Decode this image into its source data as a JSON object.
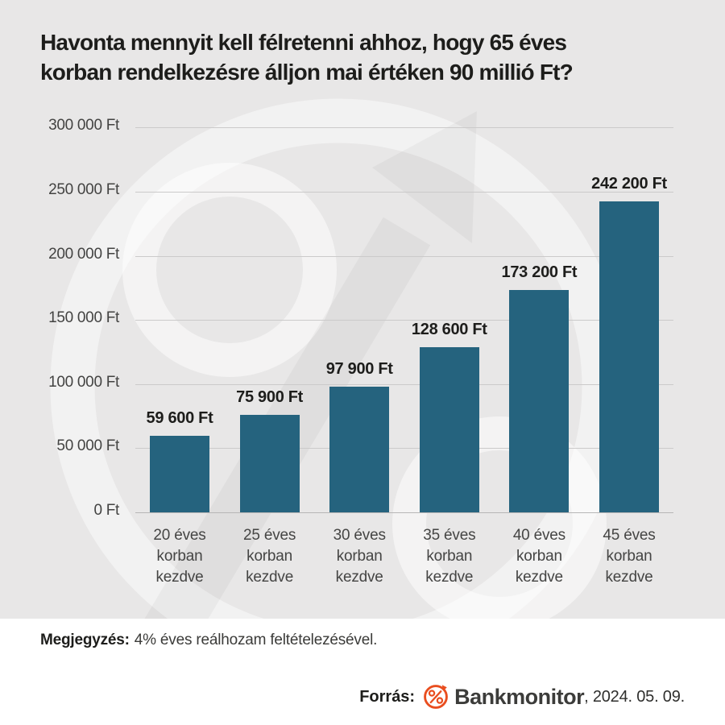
{
  "page": {
    "title_line1": "Havonta mennyit kell félretenni ahhoz, hogy 65 éves",
    "title_line2": "korban rendelkezésre álljon mai értéken 90 millió Ft?"
  },
  "chart_data": {
    "type": "bar",
    "title": "Havonta mennyit kell félretenni ahhoz, hogy 65 éves korban rendelkezésre álljon mai értéken 90 millió Ft?",
    "categories": [
      "20 éves korban kezdve",
      "25 éves korban kezdve",
      "30 éves korban kezdve",
      "35 éves korban kezdve",
      "40 éves korban kezdve",
      "45 éves korban kezdve"
    ],
    "category_lines": [
      [
        "20 éves",
        "korban",
        "kezdve"
      ],
      [
        "25 éves",
        "korban",
        "kezdve"
      ],
      [
        "30 éves",
        "korban",
        "kezdve"
      ],
      [
        "35 éves",
        "korban",
        "kezdve"
      ],
      [
        "40 éves",
        "korban",
        "kezdve"
      ],
      [
        "45 éves",
        "korban",
        "kezdve"
      ]
    ],
    "values": [
      59600,
      75900,
      97900,
      128600,
      173200,
      242200
    ],
    "value_labels": [
      "59 600 Ft",
      "75 900 Ft",
      "97 900 Ft",
      "128 600 Ft",
      "173 200 Ft",
      "242 200 Ft"
    ],
    "ylim": [
      0,
      300000
    ],
    "yticks": [
      0,
      50000,
      100000,
      150000,
      200000,
      250000,
      300000
    ],
    "ytick_labels": [
      "0 Ft",
      "50 000 Ft",
      "100 000 Ft",
      "150 000 Ft",
      "200 000 Ft",
      "250 000 Ft",
      "300 000 Ft"
    ],
    "xlabel": "",
    "ylabel": "",
    "grid": true,
    "legend": "none"
  },
  "footer": {
    "note_label": "Megjegyzés:",
    "note_text": "4% éves reálhozam feltételezésével.",
    "source_label": "Forrás:",
    "brand": "Bankmonitor",
    "date": ", 2024. 05. 09.",
    "logo_icon": "percent-circle-arrow-icon"
  },
  "colors": {
    "background": "#e8e7e7",
    "bar": "#25637e",
    "accent_orange": "#e94e1f",
    "gridline": "#cbcaca",
    "footer_background": "#ffffff"
  }
}
